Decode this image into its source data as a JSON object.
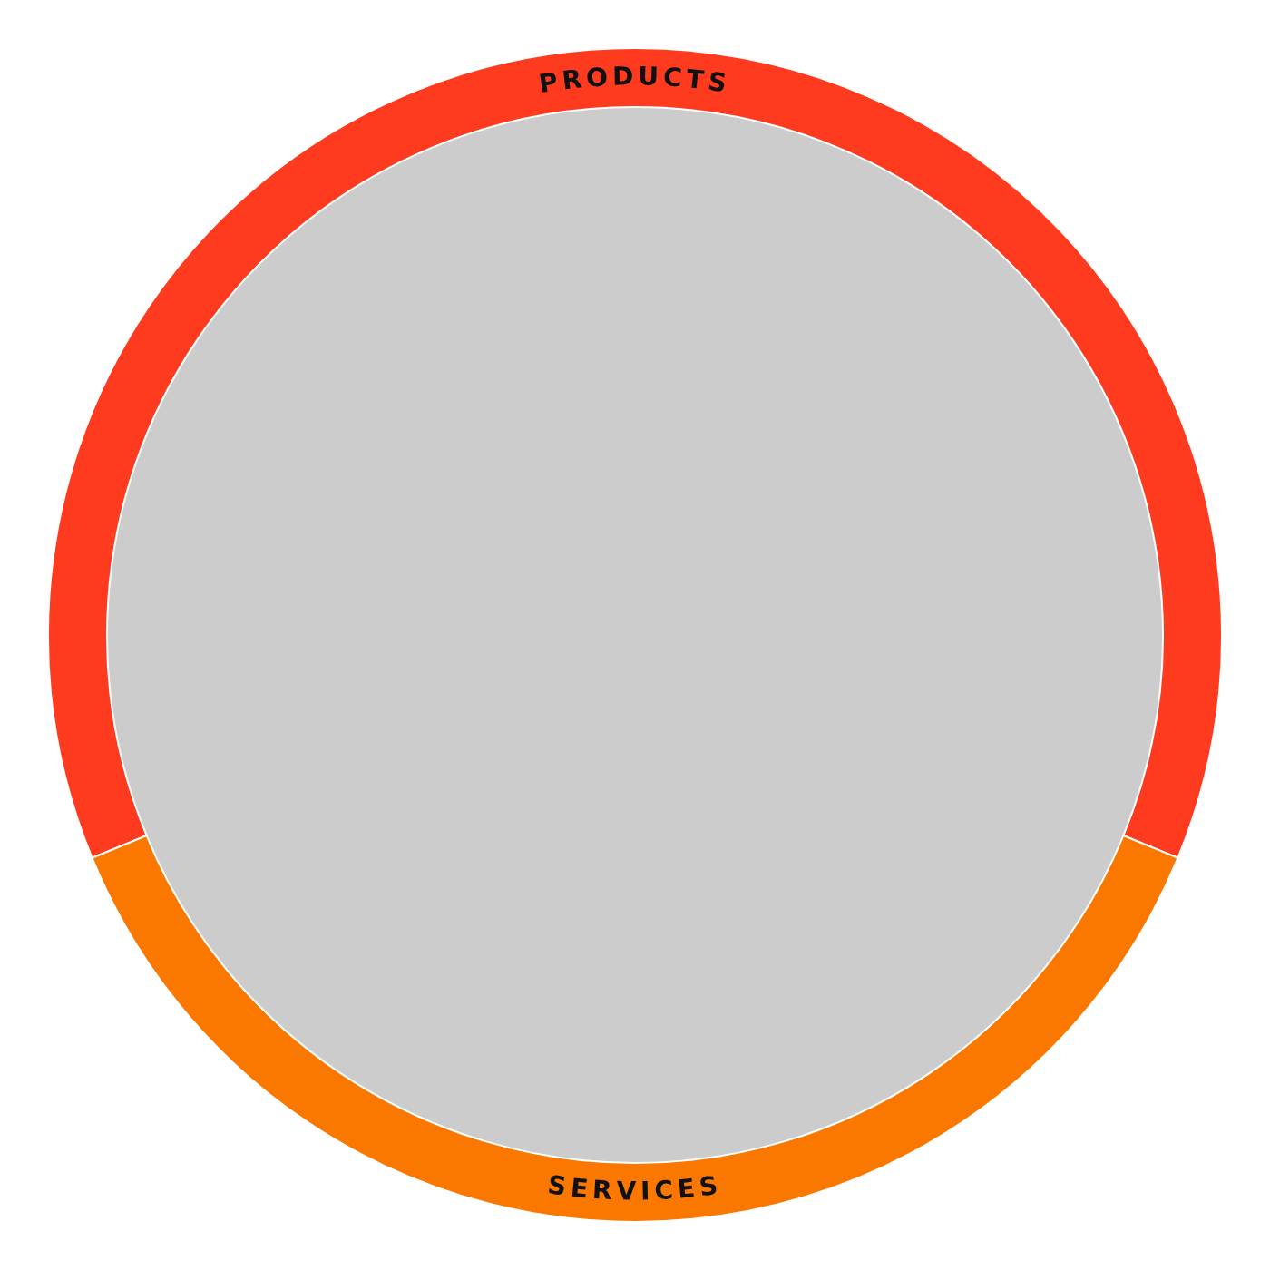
{
  "chart_data": {
    "type": "donut",
    "categories": [
      "PRODUCTS",
      "SERVICES"
    ],
    "values": [
      62.4,
      37.6
    ],
    "colors": [
      "#fe3a1f",
      "#fb7800"
    ]
  }
}
